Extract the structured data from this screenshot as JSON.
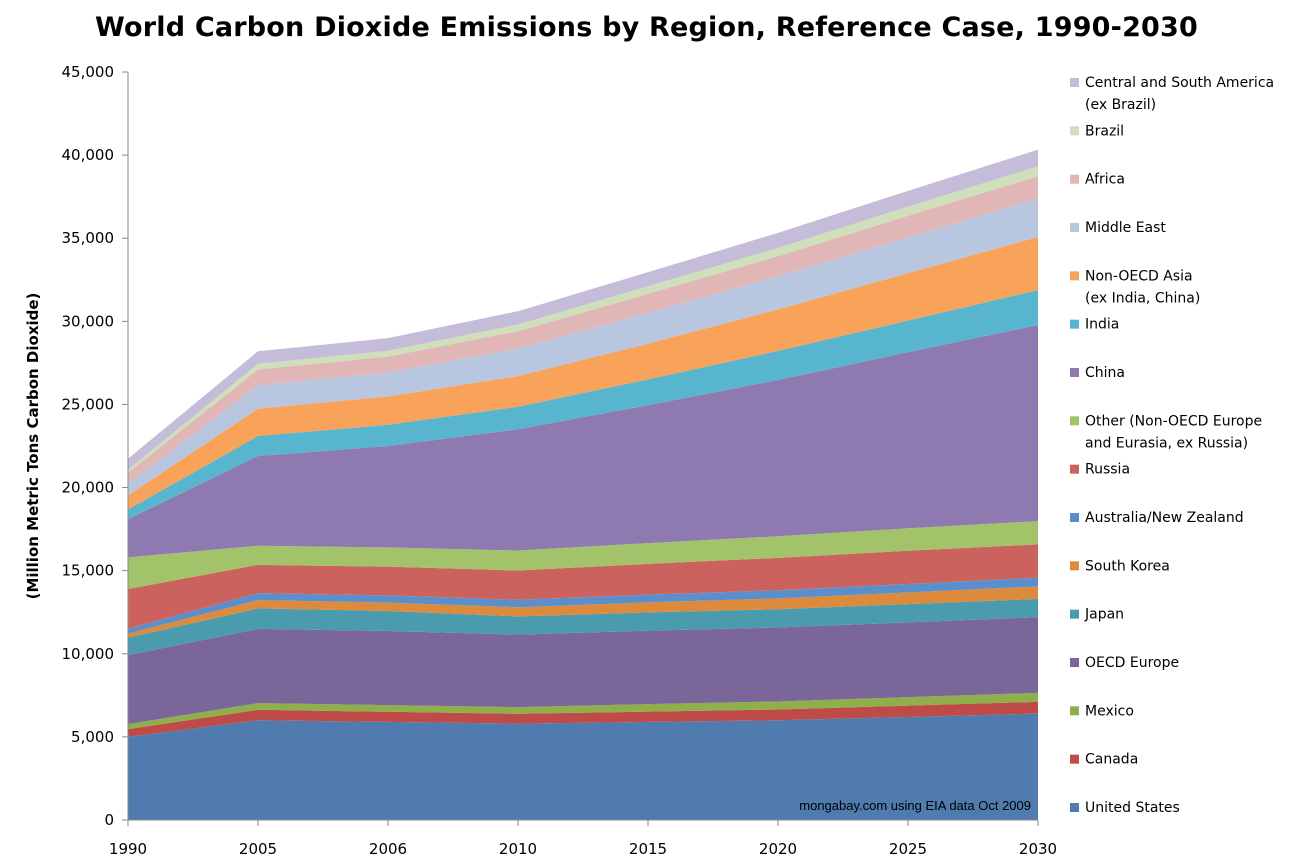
{
  "chart_data": {
    "type": "area",
    "title": "World Carbon Dioxide Emissions by Region, Reference Case, 1990-2030",
    "ylabel": "(Million Metric Tons Carbon Dioxide)",
    "xlabel": "",
    "categories": [
      "1990",
      "2005",
      "2006",
      "2010",
      "2015",
      "2020",
      "2025",
      "2030"
    ],
    "ylim": [
      0,
      45000
    ],
    "yticks": [
      0,
      5000,
      10000,
      15000,
      20000,
      25000,
      30000,
      35000,
      40000,
      45000
    ],
    "ytick_labels": [
      "0",
      "5,000",
      "10,000",
      "15,000",
      "20,000",
      "25,000",
      "30,000",
      "35,000",
      "40,000",
      "45,000"
    ],
    "stacked": true,
    "grid": false,
    "legend_position": "right",
    "annotation": "mongabay.com using EIA data Oct 2009",
    "series": [
      {
        "name": "United States",
        "color": "#4F7BAE",
        "values": [
          5000,
          6000,
          5900,
          5800,
          5900,
          6000,
          6200,
          6400
        ]
      },
      {
        "name": "Canada",
        "color": "#BF4B49",
        "values": [
          470,
          630,
          610,
          590,
          620,
          650,
          680,
          710
        ]
      },
      {
        "name": "Mexico",
        "color": "#8FAF4A",
        "values": [
          300,
          400,
          400,
          400,
          450,
          480,
          510,
          540
        ]
      },
      {
        "name": "OECD Europe",
        "color": "#7B6699",
        "values": [
          4150,
          4470,
          4460,
          4360,
          4420,
          4450,
          4500,
          4550
        ]
      },
      {
        "name": "Japan",
        "color": "#4B9BAE",
        "values": [
          1050,
          1230,
          1200,
          1100,
          1100,
          1100,
          1100,
          1100
        ]
      },
      {
        "name": "South Korea",
        "color": "#DD8A3D",
        "values": [
          240,
          500,
          510,
          550,
          600,
          650,
          700,
          750
        ]
      },
      {
        "name": "Australia/New Zealand",
        "color": "#5B8FCC",
        "values": [
          290,
          420,
          430,
          450,
          470,
          490,
          510,
          530
        ]
      },
      {
        "name": "Russia",
        "color": "#CC625D",
        "values": [
          2400,
          1700,
          1730,
          1760,
          1850,
          1950,
          2000,
          2000
        ]
      },
      {
        "name": "Other (Non-OECD Europe\nand Eurasia, ex Russia)",
        "color": "#A3C36A",
        "values": [
          1900,
          1150,
          1160,
          1200,
          1250,
          1300,
          1350,
          1400
        ]
      },
      {
        "name": "China",
        "color": "#8F79B1",
        "values": [
          2300,
          5400,
          6100,
          7300,
          8300,
          9400,
          10600,
          11800
        ]
      },
      {
        "name": "India",
        "color": "#57B6CE",
        "values": [
          580,
          1200,
          1280,
          1350,
          1550,
          1750,
          1900,
          2100
        ]
      },
      {
        "name": "Non-OECD Asia\n(ex India, China)",
        "color": "#F8A25A",
        "values": [
          850,
          1650,
          1700,
          1850,
          2150,
          2500,
          2850,
          3200
        ]
      },
      {
        "name": "Middle East",
        "color": "#B9C6E0",
        "values": [
          700,
          1400,
          1450,
          1650,
          1850,
          2000,
          2150,
          2300
        ]
      },
      {
        "name": "Africa",
        "color": "#E1B6B6",
        "values": [
          650,
          950,
          950,
          1050,
          1150,
          1200,
          1300,
          1350
        ]
      },
      {
        "name": "Brazil",
        "color": "#CFDFBA",
        "values": [
          200,
          350,
          350,
          400,
          450,
          500,
          550,
          600
        ]
      },
      {
        "name": "Central and South America\n(ex Brazil)",
        "color": "#C4BCD8",
        "values": [
          650,
          750,
          760,
          800,
          850,
          900,
          950,
          1000
        ]
      }
    ]
  }
}
